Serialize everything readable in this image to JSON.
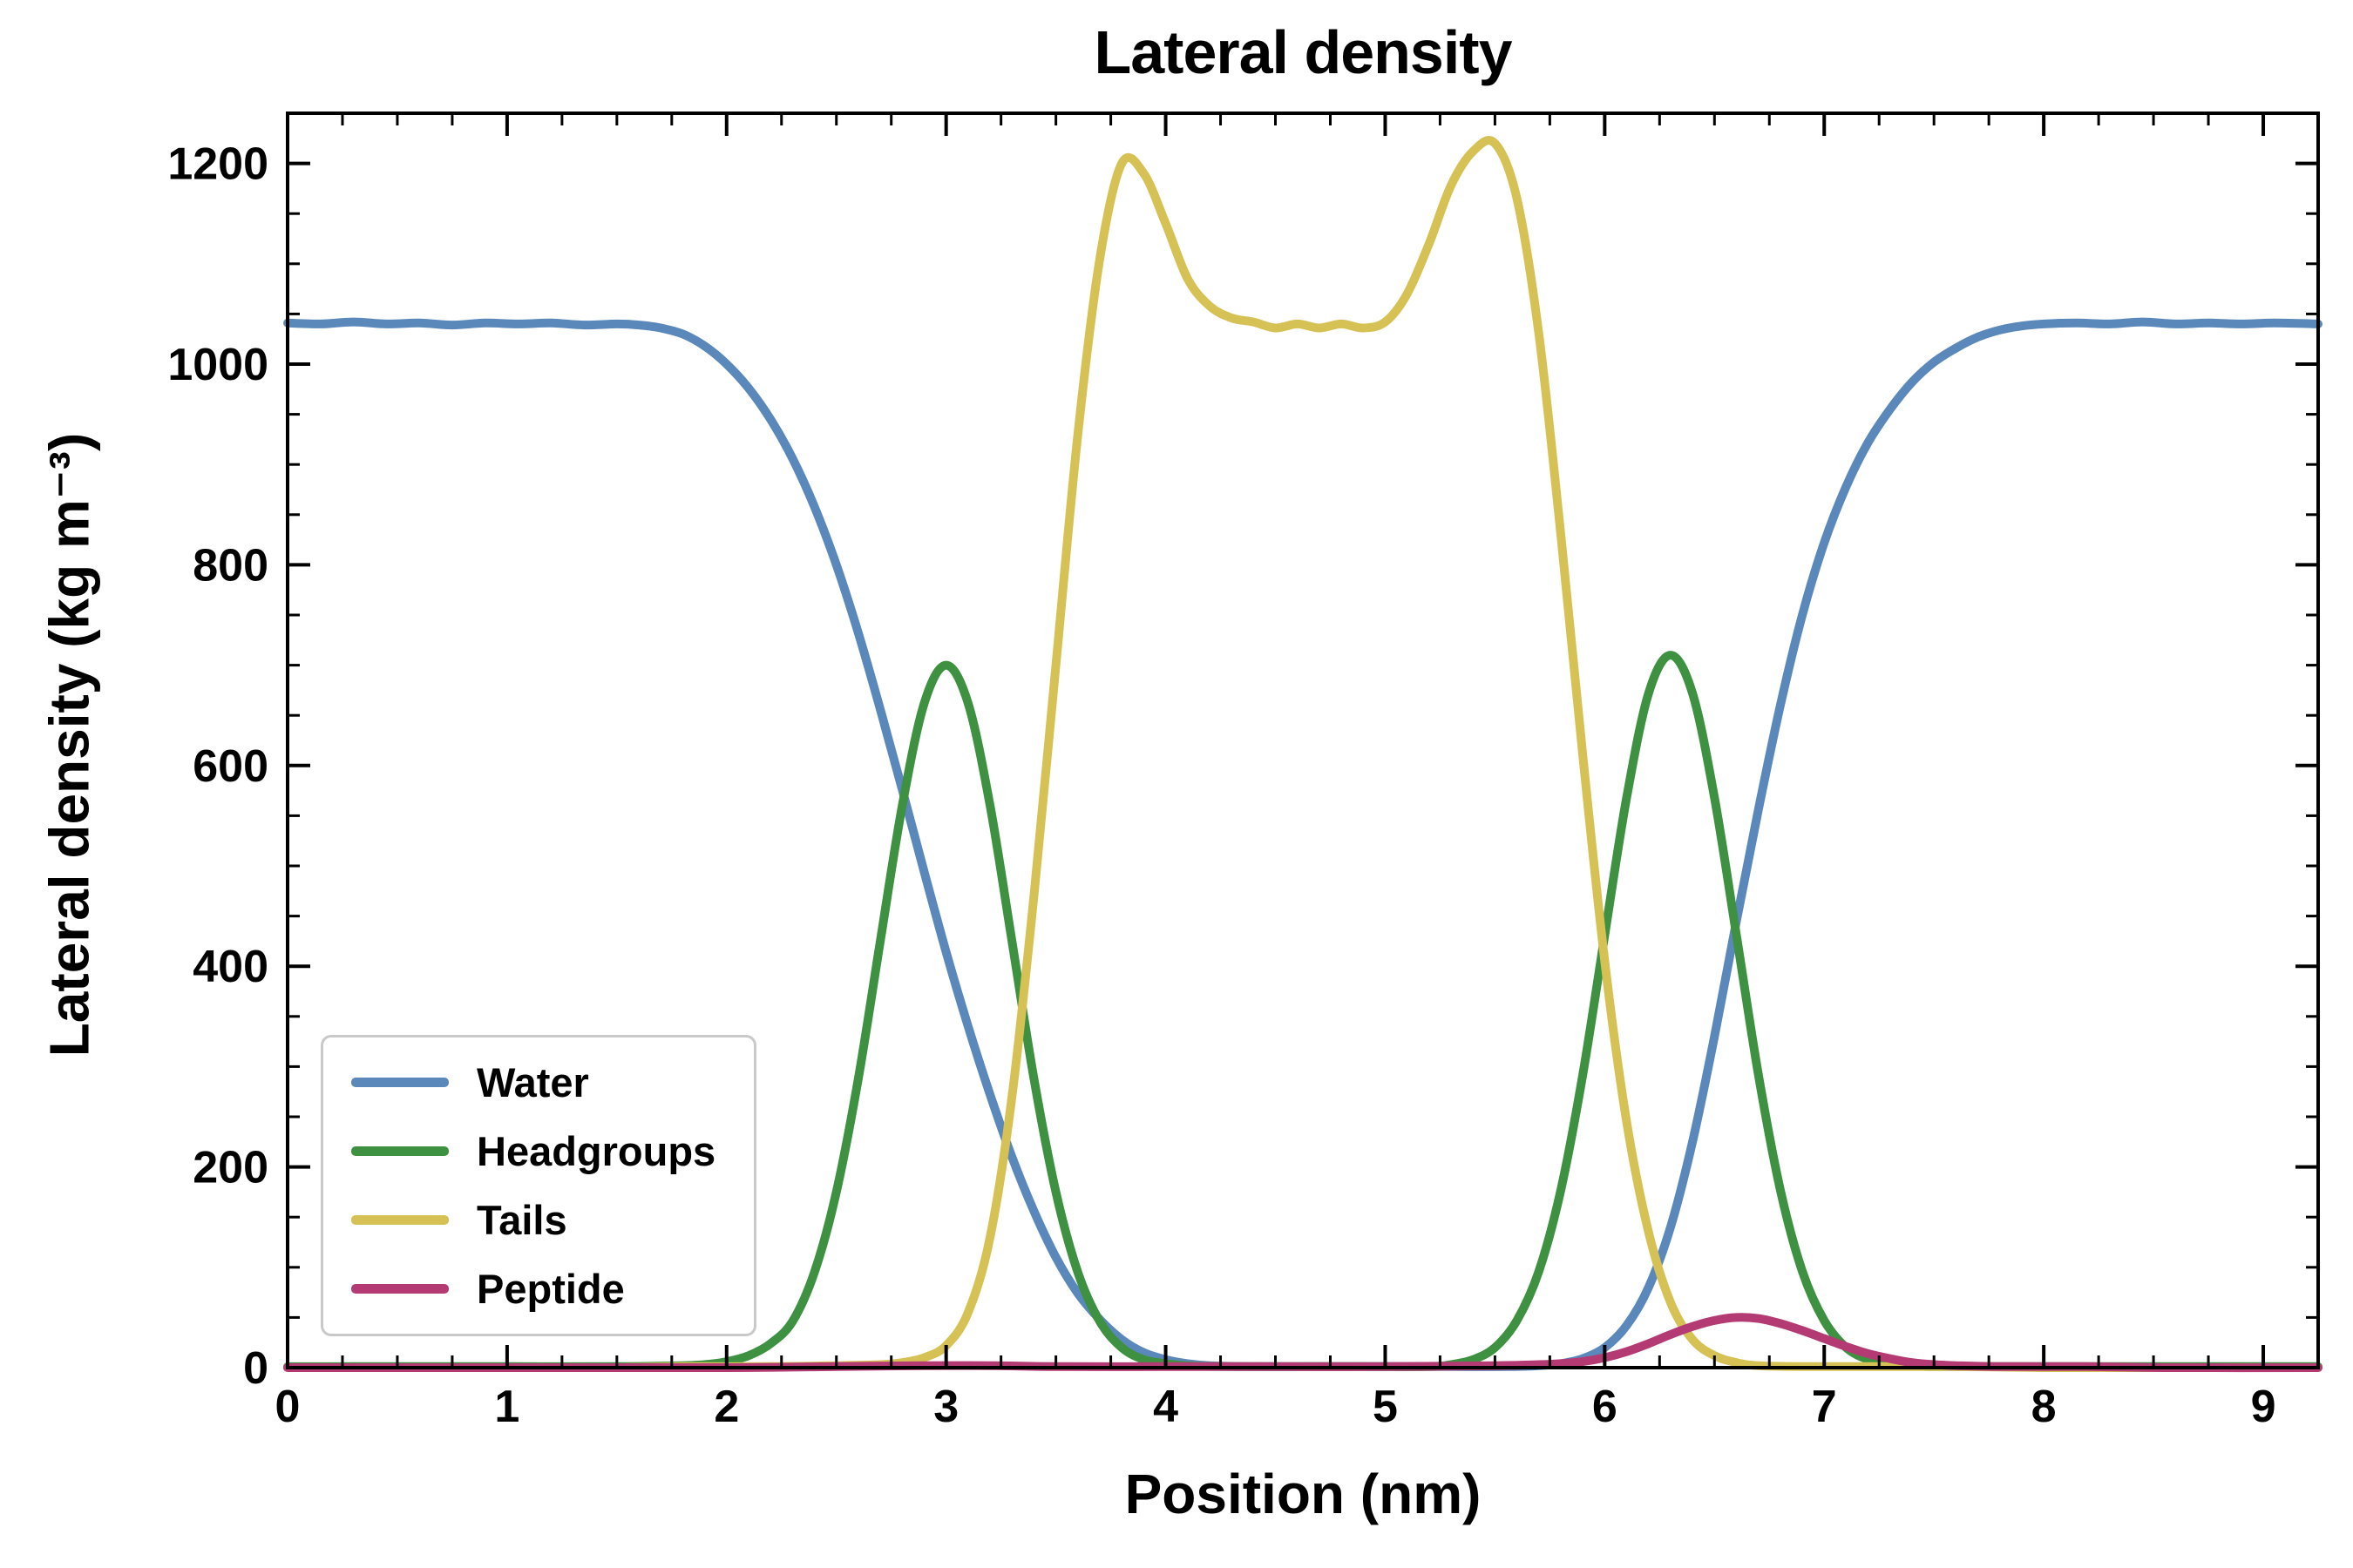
{
  "chart_data": {
    "type": "line",
    "title": "Lateral density",
    "xlabel": "Position (nm)",
    "ylabel": "Lateral density (kg m⁻³)",
    "xlim": [
      0,
      9.25
    ],
    "ylim": [
      0,
      1250
    ],
    "xticks": {
      "major": [
        0,
        1,
        2,
        3,
        4,
        5,
        6,
        7,
        8,
        9
      ],
      "minor_step": 0.25
    },
    "yticks": {
      "major": [
        0,
        200,
        400,
        600,
        800,
        1000,
        1200
      ],
      "minor_step": 50
    },
    "grid": false,
    "legend_position": "lower left",
    "axis_color": "#000000",
    "line_width": 10,
    "series": [
      {
        "name": "Water",
        "color": "#5a88ba",
        "points": [
          [
            0,
            1041
          ],
          [
            0.15,
            1040
          ],
          [
            0.3,
            1042
          ],
          [
            0.45,
            1040
          ],
          [
            0.6,
            1041
          ],
          [
            0.75,
            1039
          ],
          [
            0.9,
            1041
          ],
          [
            1.05,
            1040
          ],
          [
            1.2,
            1041
          ],
          [
            1.35,
            1039
          ],
          [
            1.5,
            1040
          ],
          [
            1.6,
            1039
          ],
          [
            1.7,
            1036
          ],
          [
            1.8,
            1030
          ],
          [
            1.9,
            1018
          ],
          [
            2.0,
            1000
          ],
          [
            2.1,
            976
          ],
          [
            2.2,
            945
          ],
          [
            2.3,
            906
          ],
          [
            2.4,
            858
          ],
          [
            2.5,
            800
          ],
          [
            2.6,
            732
          ],
          [
            2.7,
            656
          ],
          [
            2.8,
            576
          ],
          [
            2.9,
            494
          ],
          [
            3.0,
            414
          ],
          [
            3.1,
            340
          ],
          [
            3.2,
            272
          ],
          [
            3.3,
            210
          ],
          [
            3.4,
            156
          ],
          [
            3.5,
            110
          ],
          [
            3.6,
            74
          ],
          [
            3.7,
            48
          ],
          [
            3.8,
            28
          ],
          [
            3.9,
            15
          ],
          [
            4.0,
            8
          ],
          [
            4.1,
            4
          ],
          [
            4.2,
            2
          ],
          [
            4.4,
            1
          ],
          [
            4.7,
            1
          ],
          [
            5.0,
            1
          ],
          [
            5.3,
            1
          ],
          [
            5.55,
            1
          ],
          [
            5.7,
            2
          ],
          [
            5.8,
            4
          ],
          [
            5.9,
            9
          ],
          [
            6.0,
            20
          ],
          [
            6.1,
            42
          ],
          [
            6.2,
            80
          ],
          [
            6.3,
            140
          ],
          [
            6.4,
            225
          ],
          [
            6.5,
            330
          ],
          [
            6.6,
            445
          ],
          [
            6.7,
            556
          ],
          [
            6.8,
            660
          ],
          [
            6.9,
            750
          ],
          [
            7.0,
            822
          ],
          [
            7.1,
            878
          ],
          [
            7.2,
            922
          ],
          [
            7.3,
            955
          ],
          [
            7.4,
            982
          ],
          [
            7.5,
            1002
          ],
          [
            7.6,
            1016
          ],
          [
            7.7,
            1027
          ],
          [
            7.8,
            1034
          ],
          [
            7.9,
            1038
          ],
          [
            8.0,
            1040
          ],
          [
            8.15,
            1041
          ],
          [
            8.3,
            1040
          ],
          [
            8.45,
            1042
          ],
          [
            8.6,
            1040
          ],
          [
            8.75,
            1041
          ],
          [
            8.9,
            1040
          ],
          [
            9.05,
            1041
          ],
          [
            9.25,
            1040
          ]
        ]
      },
      {
        "name": "Headgroups",
        "color": "#3d9140",
        "points": [
          [
            0,
            1
          ],
          [
            0.5,
            1
          ],
          [
            1.0,
            1
          ],
          [
            1.5,
            1
          ],
          [
            1.8,
            2
          ],
          [
            1.9,
            3
          ],
          [
            2.0,
            6
          ],
          [
            2.1,
            12
          ],
          [
            2.2,
            24
          ],
          [
            2.3,
            46
          ],
          [
            2.4,
            95
          ],
          [
            2.5,
            175
          ],
          [
            2.6,
            288
          ],
          [
            2.7,
            425
          ],
          [
            2.8,
            560
          ],
          [
            2.9,
            662
          ],
          [
            3.0,
            700
          ],
          [
            3.1,
            662
          ],
          [
            3.2,
            560
          ],
          [
            3.3,
            425
          ],
          [
            3.4,
            288
          ],
          [
            3.5,
            175
          ],
          [
            3.6,
            95
          ],
          [
            3.7,
            46
          ],
          [
            3.8,
            20
          ],
          [
            3.9,
            8
          ],
          [
            4.0,
            4
          ],
          [
            4.1,
            2
          ],
          [
            4.3,
            1
          ],
          [
            4.6,
            1
          ],
          [
            4.9,
            1
          ],
          [
            5.2,
            1
          ],
          [
            5.3,
            3
          ],
          [
            5.4,
            8
          ],
          [
            5.5,
            20
          ],
          [
            5.6,
            47
          ],
          [
            5.7,
            96
          ],
          [
            5.8,
            177
          ],
          [
            5.9,
            292
          ],
          [
            6.0,
            431
          ],
          [
            6.1,
            568
          ],
          [
            6.2,
            672
          ],
          [
            6.3,
            710
          ],
          [
            6.4,
            672
          ],
          [
            6.5,
            568
          ],
          [
            6.6,
            431
          ],
          [
            6.7,
            292
          ],
          [
            6.8,
            177
          ],
          [
            6.9,
            96
          ],
          [
            7.0,
            47
          ],
          [
            7.1,
            20
          ],
          [
            7.2,
            8
          ],
          [
            7.3,
            3
          ],
          [
            7.4,
            2
          ],
          [
            7.5,
            1
          ],
          [
            7.8,
            1
          ],
          [
            8.2,
            1
          ],
          [
            8.6,
            1
          ],
          [
            9.0,
            1
          ],
          [
            9.25,
            1
          ]
        ]
      },
      {
        "name": "Tails",
        "color": "#d6c154",
        "points": [
          [
            0,
            0
          ],
          [
            0.5,
            0
          ],
          [
            1.0,
            0
          ],
          [
            1.5,
            0
          ],
          [
            1.8,
            1
          ],
          [
            2.2,
            1
          ],
          [
            2.5,
            2
          ],
          [
            2.7,
            3
          ],
          [
            2.8,
            5
          ],
          [
            2.9,
            10
          ],
          [
            3.0,
            22
          ],
          [
            3.1,
            55
          ],
          [
            3.2,
            130
          ],
          [
            3.3,
            270
          ],
          [
            3.4,
            470
          ],
          [
            3.5,
            700
          ],
          [
            3.6,
            930
          ],
          [
            3.7,
            1105
          ],
          [
            3.8,
            1200
          ],
          [
            3.9,
            1190
          ],
          [
            4.0,
            1140
          ],
          [
            4.1,
            1085
          ],
          [
            4.2,
            1058
          ],
          [
            4.3,
            1046
          ],
          [
            4.4,
            1042
          ],
          [
            4.5,
            1036
          ],
          [
            4.6,
            1040
          ],
          [
            4.7,
            1036
          ],
          [
            4.8,
            1040
          ],
          [
            4.9,
            1036
          ],
          [
            5.0,
            1042
          ],
          [
            5.1,
            1070
          ],
          [
            5.2,
            1120
          ],
          [
            5.3,
            1178
          ],
          [
            5.4,
            1212
          ],
          [
            5.5,
            1220
          ],
          [
            5.6,
            1165
          ],
          [
            5.7,
            1030
          ],
          [
            5.8,
            830
          ],
          [
            5.9,
            610
          ],
          [
            6.0,
            405
          ],
          [
            6.1,
            245
          ],
          [
            6.2,
            135
          ],
          [
            6.3,
            65
          ],
          [
            6.4,
            28
          ],
          [
            6.5,
            12
          ],
          [
            6.6,
            5
          ],
          [
            6.7,
            2
          ],
          [
            6.9,
            1
          ],
          [
            7.2,
            1
          ],
          [
            7.6,
            1
          ],
          [
            8.0,
            0
          ],
          [
            8.5,
            0
          ],
          [
            9.25,
            0
          ]
        ]
      },
      {
        "name": "Peptide",
        "color": "#b43a73",
        "points": [
          [
            0,
            0
          ],
          [
            1.0,
            0
          ],
          [
            2.0,
            0
          ],
          [
            2.5,
            1
          ],
          [
            2.9,
            2
          ],
          [
            3.2,
            2
          ],
          [
            3.5,
            1
          ],
          [
            4.0,
            1
          ],
          [
            4.5,
            1
          ],
          [
            5.0,
            1
          ],
          [
            5.5,
            2
          ],
          [
            5.7,
            3
          ],
          [
            5.8,
            4
          ],
          [
            5.9,
            6
          ],
          [
            6.0,
            10
          ],
          [
            6.1,
            16
          ],
          [
            6.2,
            24
          ],
          [
            6.3,
            33
          ],
          [
            6.4,
            41
          ],
          [
            6.5,
            47
          ],
          [
            6.6,
            50
          ],
          [
            6.7,
            49
          ],
          [
            6.8,
            44
          ],
          [
            6.9,
            37
          ],
          [
            7.0,
            29
          ],
          [
            7.1,
            21
          ],
          [
            7.2,
            14
          ],
          [
            7.3,
            9
          ],
          [
            7.4,
            5
          ],
          [
            7.5,
            3
          ],
          [
            7.6,
            2
          ],
          [
            7.8,
            1
          ],
          [
            8.2,
            1
          ],
          [
            8.6,
            0
          ],
          [
            9.25,
            0
          ]
        ]
      }
    ]
  }
}
